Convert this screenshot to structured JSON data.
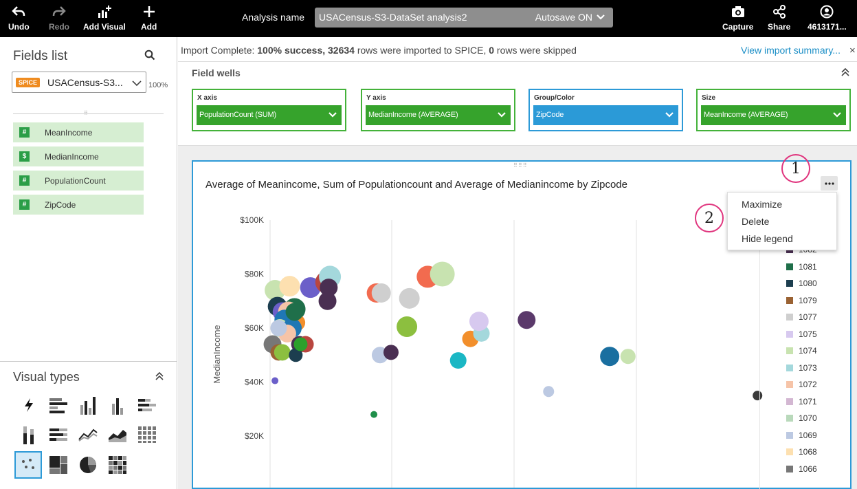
{
  "toolbar": {
    "undo": "Undo",
    "redo": "Redo",
    "add_visual": "Add Visual",
    "add": "Add",
    "analysis_label": "Analysis name",
    "analysis_name": "USACensus-S3-DataSet analysis2",
    "autosave": "Autosave ON",
    "capture": "Capture",
    "share": "Share",
    "account": "4613171..."
  },
  "sidebar": {
    "fields_title": "Fields list",
    "spice_badge": "SPICE",
    "dataset": "USACensus-S3...",
    "spice_pct": "100%",
    "fields": [
      {
        "type": "#",
        "name": "MeanIncome"
      },
      {
        "type": "$",
        "name": "MedianIncome"
      },
      {
        "type": "#",
        "name": "PopulationCount"
      },
      {
        "type": "#",
        "name": "ZipCode"
      }
    ],
    "visual_types_title": "Visual types"
  },
  "import_bar": {
    "prefix": "Import Complete: ",
    "success": "100% success, 32634",
    "middle": " rows were imported to SPICE, ",
    "skipped": "0",
    "suffix": " rows were skipped",
    "link": "View import summary...",
    "close": "×"
  },
  "field_wells": {
    "title": "Field wells",
    "wells": [
      {
        "label": "X axis",
        "value": "PopulationCount (SUM)"
      },
      {
        "label": "Y axis",
        "value": "MedianIncome (AVERAGE)"
      },
      {
        "label": "Group/Color",
        "value": "ZipCode"
      },
      {
        "label": "Size",
        "value": "MeanIncome (AVERAGE)"
      }
    ]
  },
  "visual": {
    "title": "Average of Meanincome, Sum of Populationcount and Average of Medianincome by Zipcode",
    "menu": [
      "Maximize",
      "Delete",
      "Hide legend"
    ],
    "callouts": [
      "1",
      "2"
    ]
  },
  "chart_data": {
    "type": "scatter",
    "title": "Average of Meanincome, Sum of Populationcount and Average of Medianincome by Zipcode",
    "ylabel": "MedianIncome",
    "xlabel": "",
    "yticks": [
      "$100K",
      "$80K",
      "$60K",
      "$40K",
      "$20K"
    ],
    "ytick_values": [
      100000,
      80000,
      60000,
      40000,
      20000
    ],
    "ylim": [
      0,
      100000
    ],
    "xlim": [
      0,
      4
    ],
    "grid": true,
    "legend_position": "right",
    "legend": [
      {
        "label": "1082",
        "color": "#4a2f52"
      },
      {
        "label": "1081",
        "color": "#1f6f4a"
      },
      {
        "label": "1080",
        "color": "#1c3e4f"
      },
      {
        "label": "1079",
        "color": "#9a6233"
      },
      {
        "label": "1077",
        "color": "#cfcfcf"
      },
      {
        "label": "1075",
        "color": "#d7c9ef"
      },
      {
        "label": "1074",
        "color": "#c8e3b0"
      },
      {
        "label": "1073",
        "color": "#a4d8dc"
      },
      {
        "label": "1072",
        "color": "#f6c4a8"
      },
      {
        "label": "1071",
        "color": "#d3b7d2"
      },
      {
        "label": "1070",
        "color": "#b9d9bb"
      },
      {
        "label": "1069",
        "color": "#bcc9e2"
      },
      {
        "label": "1068",
        "color": "#fde0b0"
      },
      {
        "label": "1066",
        "color": "#777777"
      }
    ],
    "points": [
      {
        "x": 0.04,
        "y": 74000,
        "r": 15,
        "color": "#c8e3b0"
      },
      {
        "x": 0.16,
        "y": 75500,
        "r": 15,
        "color": "#fde0b0"
      },
      {
        "x": 0.33,
        "y": 75000,
        "r": 15,
        "color": "#6b5fc9"
      },
      {
        "x": 0.46,
        "y": 77000,
        "r": 16,
        "color": "#b9463f"
      },
      {
        "x": 0.49,
        "y": 79000,
        "r": 16,
        "color": "#a4d8dc"
      },
      {
        "x": 0.48,
        "y": 75000,
        "r": 13,
        "color": "#4a2f52"
      },
      {
        "x": 0.47,
        "y": 70000,
        "r": 13,
        "color": "#4a2f52"
      },
      {
        "x": 0.06,
        "y": 68000,
        "r": 14,
        "color": "#1c3e4f"
      },
      {
        "x": 0.1,
        "y": 66000,
        "r": 14,
        "color": "#6b5fc9"
      },
      {
        "x": 0.2,
        "y": 67000,
        "r": 16,
        "color": "#1f6f4a"
      },
      {
        "x": 0.15,
        "y": 66000,
        "r": 15,
        "color": "#f6c4a8"
      },
      {
        "x": 0.22,
        "y": 62000,
        "r": 12,
        "color": "#f28f2c"
      },
      {
        "x": 0.12,
        "y": 63000,
        "r": 15,
        "color": "#1f77b4"
      },
      {
        "x": 0.08,
        "y": 60000,
        "r": 13,
        "color": "#c8e3b0"
      },
      {
        "x": 0.18,
        "y": 60000,
        "r": 14,
        "color": "#1f77b4"
      },
      {
        "x": 0.14,
        "y": 58000,
        "r": 13,
        "color": "#f6c4a8"
      },
      {
        "x": 0.2,
        "y": 66000,
        "r": 13,
        "color": "#1f6f4a"
      },
      {
        "x": 0.02,
        "y": 54000,
        "r": 13,
        "color": "#777777"
      },
      {
        "x": 0.07,
        "y": 51000,
        "r": 12,
        "color": "#9a6233"
      },
      {
        "x": 0.1,
        "y": 51000,
        "r": 12,
        "color": "#8cbf3f"
      },
      {
        "x": 0.24,
        "y": 54000,
        "r": 12,
        "color": "#4a2f52"
      },
      {
        "x": 0.29,
        "y": 54000,
        "r": 12,
        "color": "#b9463f"
      },
      {
        "x": 0.21,
        "y": 50000,
        "r": 10,
        "color": "#1c3e4f"
      },
      {
        "x": 0.25,
        "y": 54000,
        "r": 10,
        "color": "#2ca02c"
      },
      {
        "x": 0.07,
        "y": 60000,
        "r": 12,
        "color": "#bcc9e2"
      },
      {
        "x": 0.87,
        "y": 73000,
        "r": 14,
        "color": "#f26b4f"
      },
      {
        "x": 0.91,
        "y": 73000,
        "r": 14,
        "color": "#cfcfcf"
      },
      {
        "x": 1.14,
        "y": 71000,
        "r": 15,
        "color": "#cfcfcf"
      },
      {
        "x": 1.29,
        "y": 79000,
        "r": 16,
        "color": "#f26b4f"
      },
      {
        "x": 1.41,
        "y": 80000,
        "r": 18,
        "color": "#c8e3b0"
      },
      {
        "x": 1.12,
        "y": 60500,
        "r": 15,
        "color": "#8cbf3f"
      },
      {
        "x": 0.9,
        "y": 50000,
        "r": 12,
        "color": "#bcc9e2"
      },
      {
        "x": 0.99,
        "y": 51000,
        "r": 11,
        "color": "#4a2f52"
      },
      {
        "x": 1.54,
        "y": 48000,
        "r": 12,
        "color": "#1bb7c4"
      },
      {
        "x": 1.64,
        "y": 56000,
        "r": 12,
        "color": "#f28f2c"
      },
      {
        "x": 1.73,
        "y": 58000,
        "r": 12,
        "color": "#a4d8dc"
      },
      {
        "x": 1.71,
        "y": 62500,
        "r": 14,
        "color": "#d7c9ef"
      },
      {
        "x": 2.1,
        "y": 63000,
        "r": 13,
        "color": "#5b3a6b"
      },
      {
        "x": 2.28,
        "y": 36500,
        "r": 8,
        "color": "#bcc9e2"
      },
      {
        "x": 2.78,
        "y": 49500,
        "r": 14,
        "color": "#1a6fa0"
      },
      {
        "x": 2.93,
        "y": 49500,
        "r": 11,
        "color": "#c8e3b0"
      },
      {
        "x": 3.99,
        "y": 35000,
        "r": 7,
        "color": "#3a3a3a"
      },
      {
        "x": 0.04,
        "y": 40500,
        "r": 5,
        "color": "#6b5fc9"
      },
      {
        "x": 0.85,
        "y": 28000,
        "r": 5,
        "color": "#1f8f4a"
      }
    ]
  },
  "colors": {
    "accent_blue": "#2d9ad7",
    "well_green": "#36a32c",
    "field_bg": "#d6eed2",
    "spice_orange": "#ef8b1f",
    "callout_pink": "#e0357e"
  }
}
